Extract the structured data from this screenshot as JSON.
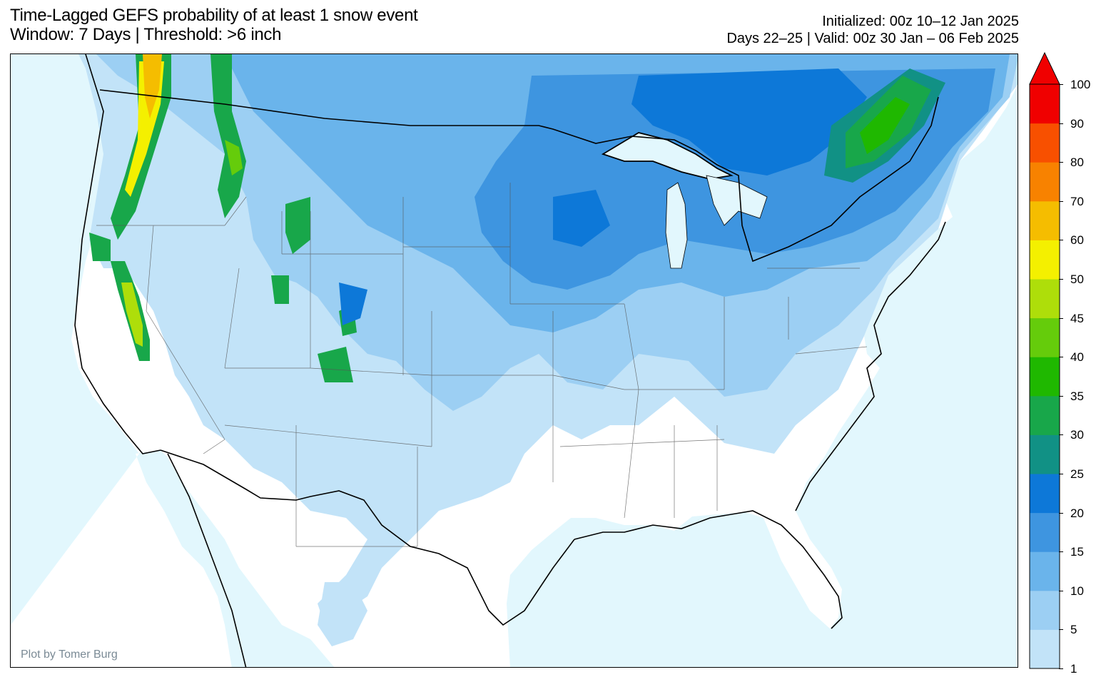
{
  "title": {
    "line1": "Time-Lagged GEFS probability of at least 1 snow event",
    "line2": "Window: 7 Days | Threshold: >6 inch"
  },
  "meta": {
    "initialized": "Initialized: 00z 10–12 Jan 2025",
    "valid": "Days 22–25 | Valid: 00z 30 Jan – 06 Feb 2025"
  },
  "credit": "Plot by Tomer Burg",
  "colors": {
    "ocean": "#e2f7fd",
    "land": "#ffffff"
  },
  "colorbar": {
    "labels": [
      "1",
      "5",
      "10",
      "15",
      "20",
      "25",
      "30",
      "35",
      "40",
      "45",
      "50",
      "60",
      "70",
      "80",
      "90",
      "100"
    ],
    "colors": [
      "#c2e3f8",
      "#9ccff3",
      "#6ab4eb",
      "#3e95e0",
      "#0d78d8",
      "#119185",
      "#18a74a",
      "#1fb800",
      "#65cc0b",
      "#aede0a",
      "#f4f000",
      "#f5bd00",
      "#f88200",
      "#f85000",
      "#f00000"
    ],
    "extend_color": "#f00000"
  }
}
